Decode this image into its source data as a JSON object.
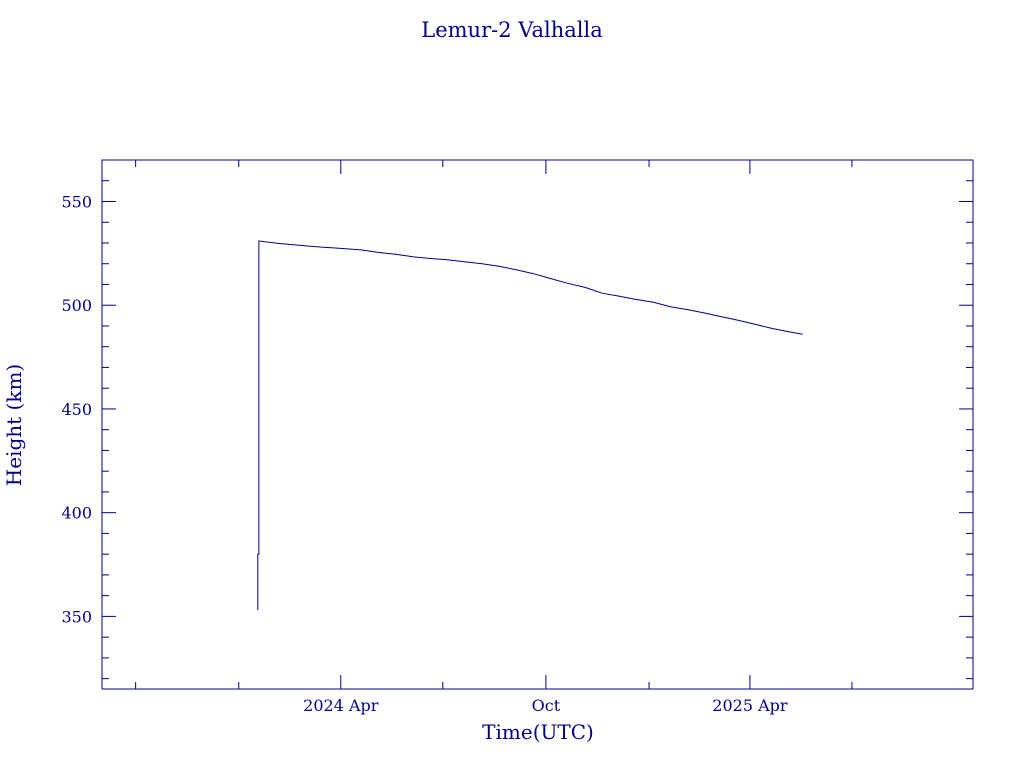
{
  "chart_data": {
    "type": "line",
    "title": "Lemur-2 Valhalla",
    "xlabel": "Time(UTC)",
    "ylabel": "Height (km)",
    "xlim": [
      "2023-09-01",
      "2025-10-17"
    ],
    "ylim": [
      315,
      570
    ],
    "x_ticks": [
      {
        "date": "2024-04-01",
        "label": "2024 Apr"
      },
      {
        "date": "2024-10-01",
        "label": "Oct"
      },
      {
        "date": "2025-04-01",
        "label": "2025 Apr"
      }
    ],
    "x_minor_ticks": [
      "2023-10-01",
      "2024-01-01",
      "2024-07-01",
      "2025-01-01",
      "2025-07-01"
    ],
    "y_ticks": [
      350,
      400,
      450,
      500,
      550
    ],
    "y_minor_step": 10,
    "grid": false,
    "legend": "none",
    "color": "#00008b",
    "series": [
      {
        "points": [
          [
            "2024-01-18",
            353
          ],
          [
            "2024-01-18",
            380
          ],
          [
            "2024-01-19",
            380
          ],
          [
            "2024-01-19",
            531
          ],
          [
            "2024-01-25",
            530.5
          ],
          [
            "2024-02-05",
            529.8
          ],
          [
            "2024-02-15",
            529.3
          ],
          [
            "2024-03-01",
            528.6
          ],
          [
            "2024-03-15",
            528
          ],
          [
            "2024-04-01",
            527.4
          ],
          [
            "2024-04-20",
            526.6
          ],
          [
            "2024-05-05",
            525.4
          ],
          [
            "2024-05-20",
            524.6
          ],
          [
            "2024-06-05",
            523.3
          ],
          [
            "2024-06-20",
            522.5
          ],
          [
            "2024-07-05",
            521.9
          ],
          [
            "2024-07-20",
            521
          ],
          [
            "2024-08-05",
            520
          ],
          [
            "2024-08-20",
            518.8
          ],
          [
            "2024-09-05",
            517
          ],
          [
            "2024-09-20",
            515.2
          ],
          [
            "2024-10-05",
            512.9
          ],
          [
            "2024-10-20",
            510.6
          ],
          [
            "2024-11-05",
            508.6
          ],
          [
            "2024-11-20",
            505.8
          ],
          [
            "2024-12-05",
            504.4
          ],
          [
            "2024-12-20",
            502.8
          ],
          [
            "2025-01-05",
            501.4
          ],
          [
            "2025-01-20",
            499.3
          ],
          [
            "2025-02-05",
            497.8
          ],
          [
            "2025-02-20",
            496.2
          ],
          [
            "2025-03-05",
            494.6
          ],
          [
            "2025-03-20",
            492.9
          ],
          [
            "2025-04-05",
            490.9
          ],
          [
            "2025-04-20",
            488.9
          ],
          [
            "2025-05-05",
            487.3
          ],
          [
            "2025-05-18",
            486
          ]
        ]
      }
    ]
  }
}
